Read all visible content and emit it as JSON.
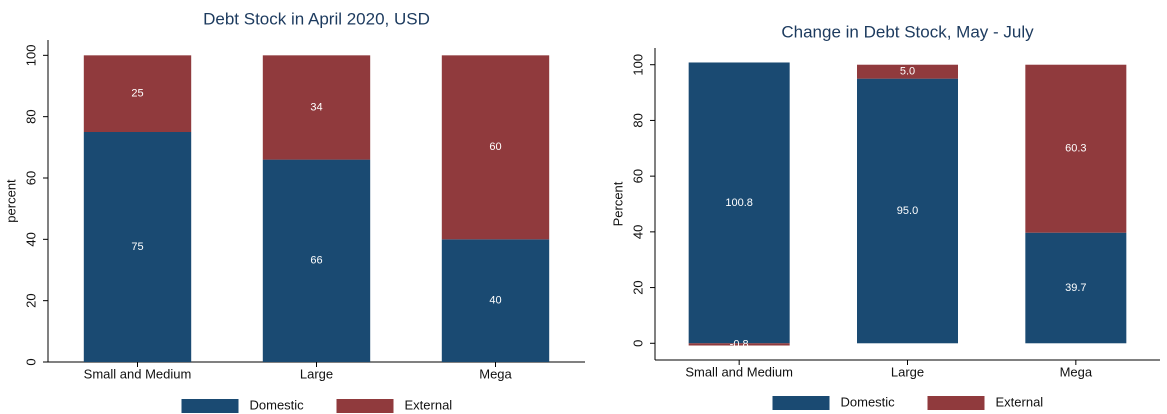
{
  "chart_data": [
    {
      "type": "stacked-bar",
      "title": "Debt Stock in April 2020, USD",
      "y_label": "percent",
      "categories": [
        "Small and Medium",
        "Large",
        "Mega"
      ],
      "series": [
        {
          "name": "Domestic",
          "color": "#1a4a72",
          "values": [
            75,
            66,
            40
          ]
        },
        {
          "name": "External",
          "color": "#903a3d",
          "values": [
            25,
            34,
            60
          ]
        }
      ],
      "ylim": [
        0,
        105
      ],
      "yticks": [
        0,
        20,
        40,
        60,
        80,
        100
      ]
    },
    {
      "type": "stacked-bar",
      "title": "Change in Debt Stock, May - July",
      "y_label": "Percent",
      "categories": [
        "Small and Medium",
        "Large",
        "Mega"
      ],
      "series": [
        {
          "name": "Domestic",
          "color": "#1a4a72",
          "values": [
            100.8,
            95.0,
            39.7
          ],
          "value_labels": [
            "100.8",
            "95.0",
            "39.7"
          ]
        },
        {
          "name": "External",
          "color": "#903a3d",
          "values": [
            -0.8,
            5.0,
            60.3
          ],
          "value_labels": [
            "-0.8",
            "5.0",
            "60.3"
          ]
        }
      ],
      "ylim": [
        -6,
        106
      ],
      "yticks": [
        0,
        20,
        40,
        60,
        80,
        100
      ]
    }
  ]
}
